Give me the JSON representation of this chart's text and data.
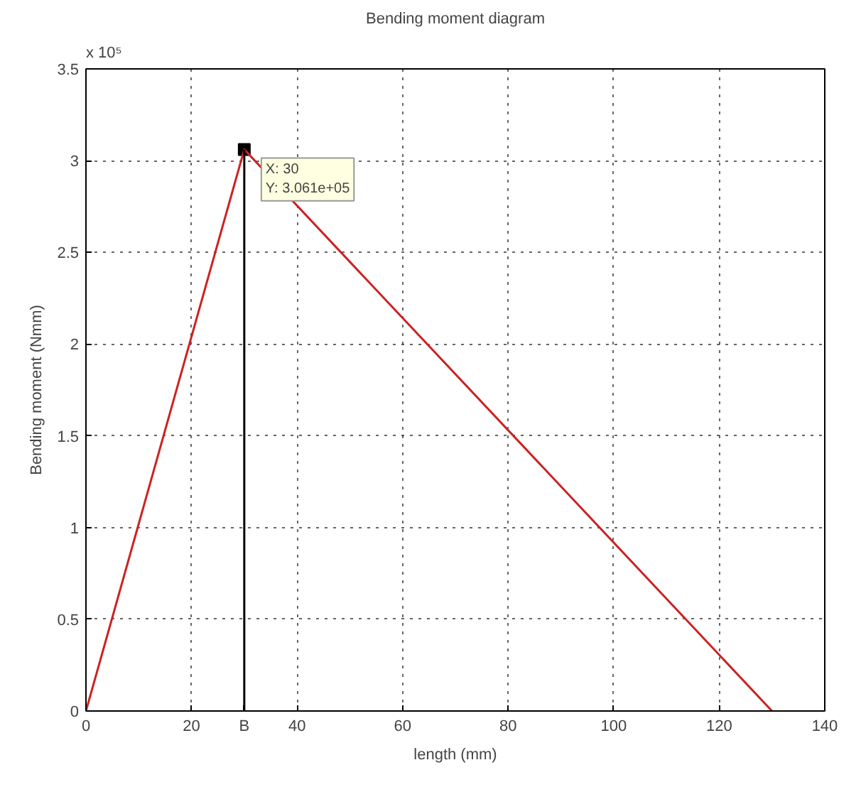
{
  "chart_data": {
    "type": "line",
    "title": "Bending moment diagram",
    "xlabel": "length (mm)",
    "ylabel": "Bending moment (Nmm)",
    "x": [
      0,
      30,
      130
    ],
    "series": [
      {
        "color": "#cc2222",
        "values": [
          0,
          3.061,
          0
        ]
      },
      {
        "color": "#000000",
        "x": [
          30,
          30
        ],
        "values": [
          0,
          3.061
        ]
      }
    ],
    "xlim": [
      0,
      140
    ],
    "ylim": [
      0,
      3.5
    ],
    "xticks": [
      0,
      20,
      40,
      60,
      80,
      100,
      120,
      140
    ],
    "yticks": [
      0,
      0.5,
      1,
      1.5,
      2,
      2.5,
      3,
      3.5
    ],
    "grid": true,
    "line_style": "solid",
    "annotations": [
      "x 10⁵",
      {
        "text": "X: 30\nY: 3.061e+05",
        "x": 30,
        "y": 3.061
      },
      {
        "text": "B",
        "x": 30,
        "y": 0
      }
    ]
  }
}
